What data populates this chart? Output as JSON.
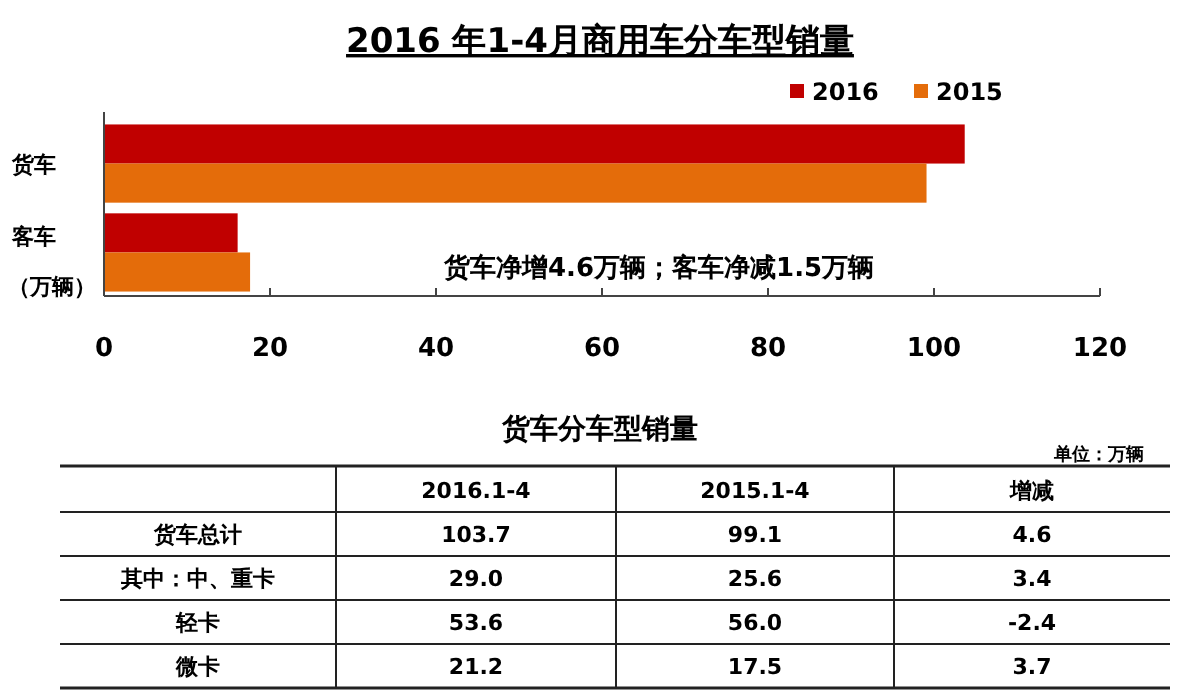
{
  "chart_data": [
    {
      "type": "bar",
      "orientation": "horizontal",
      "title": "2016 年1-4月商用车分车型销量",
      "ylabel": "（万辆）",
      "categories": [
        "货车",
        "客车"
      ],
      "series": [
        {
          "name": "2016",
          "color": "#c00000",
          "values": [
            103.7,
            16.1
          ]
        },
        {
          "name": "2015",
          "color": "#e46c0a",
          "values": [
            99.1,
            17.6
          ]
        }
      ],
      "xlim": [
        0,
        120
      ],
      "xticks": [
        0,
        20,
        40,
        60,
        80,
        100,
        120
      ],
      "grid": false,
      "legend": "top right",
      "annotations": [
        "货车净增4.6万辆；客车净减1.5万辆"
      ]
    },
    {
      "type": "heatmap",
      "title": "货车分车型销量",
      "categories": [
        "2016.1-4",
        "2015.1-4",
        "增减"
      ],
      "y_categories": [
        "货车总计",
        "其中：中、重卡",
        "轻卡",
        "微卡"
      ],
      "cells": [
        [
          103.7,
          99.1,
          4.6
        ],
        [
          29.0,
          25.6,
          3.4
        ],
        [
          53.6,
          56.0,
          -2.4
        ],
        [
          21.2,
          17.5,
          3.7
        ]
      ],
      "cell_labels": [
        [
          "103.7",
          "99.1",
          "4.6"
        ],
        [
          "29.0",
          "25.6",
          "3.4"
        ],
        [
          "53.6",
          "56.0",
          "-2.4"
        ],
        [
          "21.2",
          "17.5",
          "3.7"
        ]
      ],
      "data_labels": true,
      "annotations": [
        "单位：万辆"
      ]
    }
  ]
}
